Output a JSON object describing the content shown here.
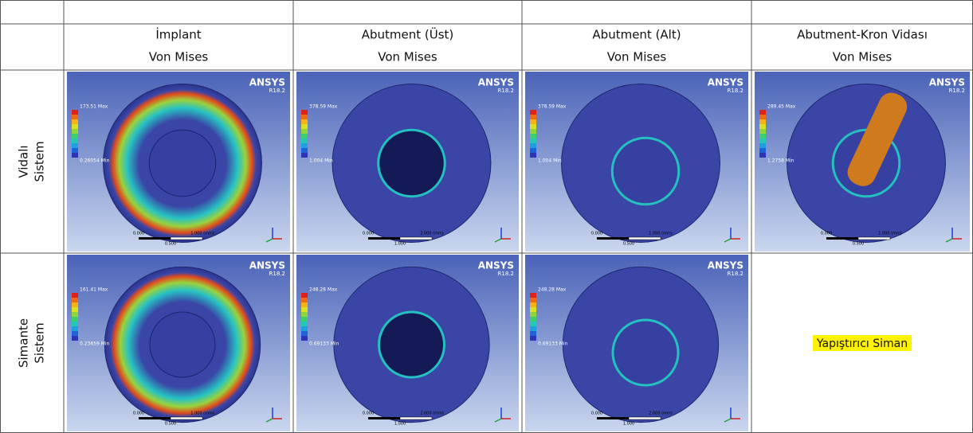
{
  "table": {
    "columns": [
      {
        "name": "İmplant",
        "stress": "Von Mises"
      },
      {
        "name": "Abutment (Üst)",
        "stress": "Von Mises"
      },
      {
        "name": "Abutment (Alt)",
        "stress": "Von Mises"
      },
      {
        "name": "Abutment-Kron Vidası",
        "stress": "Von Mises"
      }
    ],
    "rows": [
      {
        "label": [
          "Vidalı",
          "Sistem"
        ],
        "panels": [
          {
            "brand": "ANSYS",
            "version": "R18.2",
            "max": "173.51 Max",
            "min": "0.26054 Min",
            "scale": [
              "0.000",
              "1.000 (mm)",
              "0.500"
            ]
          },
          {
            "brand": "ANSYS",
            "version": "R18.2",
            "max": "378.59 Max",
            "min": "1.004 Min",
            "scale": [
              "0.000",
              "2.000 (mm)",
              "1.000"
            ]
          },
          {
            "brand": "ANSYS",
            "version": "R18.2",
            "max": "378.59 Max",
            "min": "1.004 Min",
            "scale": [
              "0.000",
              "1.000 (mm)",
              "0.500"
            ]
          },
          {
            "brand": "ANSYS",
            "version": "R18.2",
            "max": "289.45 Max",
            "min": "1.2758 Min",
            "scale": [
              "0.000",
              "1.000 (mm)",
              "0.500"
            ]
          }
        ]
      },
      {
        "label": [
          "Simante",
          "Sistem"
        ],
        "note": "Yapıştırıcı Siman",
        "panels": [
          {
            "brand": "ANSYS",
            "version": "R18.2",
            "max": "161.41 Max",
            "min": "0.23659 Min",
            "scale": [
              "0.000",
              "1.000 (mm)",
              "0.500"
            ]
          },
          {
            "brand": "ANSYS",
            "version": "R18.2",
            "max": "248.28 Max",
            "min": "0.69133 Min",
            "scale": [
              "0.000",
              "2.000 (mm)",
              "1.000"
            ]
          },
          {
            "brand": "ANSYS",
            "version": "R18.2",
            "max": "248.28 Max",
            "min": "0.69133 Min",
            "scale": [
              "0.000",
              "2.000 (mm)",
              "1.000"
            ]
          }
        ]
      }
    ]
  }
}
